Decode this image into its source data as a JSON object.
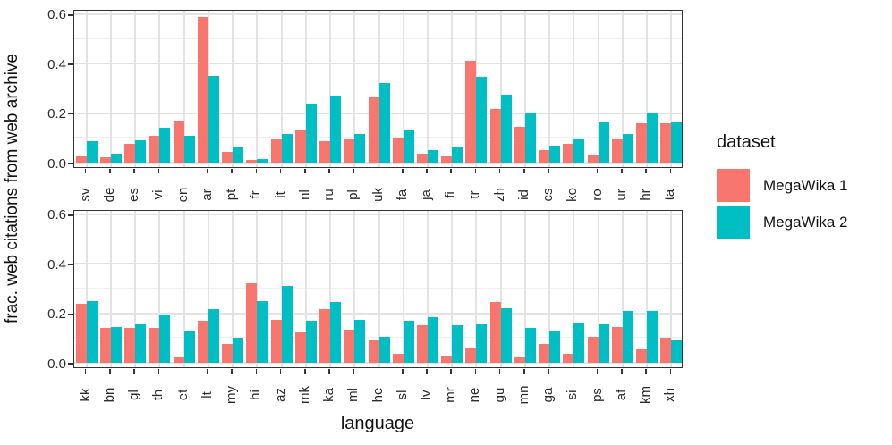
{
  "chart_data": {
    "type": "bar",
    "title": "",
    "xlabel": "language",
    "ylabel": "frac. web citations from web archive",
    "ylim": [
      0,
      0.6
    ],
    "yticks": [
      0.0,
      0.2,
      0.4,
      0.6
    ],
    "ytick_labels": [
      "0.0",
      "0.2",
      "0.4",
      "0.6"
    ],
    "yminor": [
      0.1,
      0.3,
      0.5
    ],
    "grid": "major+minor",
    "legend_position": "right",
    "panels": [
      {
        "categories": [
          "sv",
          "de",
          "es",
          "vi",
          "en",
          "ar",
          "pt",
          "fr",
          "it",
          "nl",
          "ru",
          "pl",
          "uk",
          "fa",
          "ja",
          "fi",
          "tr",
          "zh",
          "id",
          "cs",
          "ko",
          "ro",
          "ur",
          "hr",
          "ta"
        ],
        "series": [
          {
            "name": "MegaWika 1",
            "values": [
              0.025,
              0.02,
              0.075,
              0.11,
              0.17,
              0.59,
              0.045,
              0.01,
              0.095,
              0.135,
              0.085,
              0.095,
              0.265,
              0.1,
              0.035,
              0.025,
              0.41,
              0.215,
              0.145,
              0.05,
              0.075,
              0.03,
              0.095,
              0.16,
              0.16
            ]
          },
          {
            "name": "MegaWika 2",
            "values": [
              0.085,
              0.035,
              0.09,
              0.14,
              0.11,
              0.35,
              0.065,
              0.015,
              0.115,
              0.24,
              0.27,
              0.115,
              0.32,
              0.135,
              0.05,
              0.065,
              0.345,
              0.275,
              0.2,
              0.07,
              0.095,
              0.165,
              0.115,
              0.2,
              0.165
            ]
          }
        ]
      },
      {
        "categories": [
          "kk",
          "bn",
          "gl",
          "th",
          "et",
          "lt",
          "my",
          "hi",
          "az",
          "mk",
          "ka",
          "ml",
          "he",
          "sl",
          "lv",
          "mr",
          "ne",
          "gu",
          "mn",
          "ga",
          "si",
          "ps",
          "af",
          "km",
          "xh"
        ],
        "series": [
          {
            "name": "MegaWika 1",
            "values": [
              0.24,
              0.14,
              0.14,
              0.14,
              0.02,
              0.17,
              0.075,
              0.32,
              0.175,
              0.125,
              0.215,
              0.135,
              0.095,
              0.035,
              0.15,
              0.03,
              0.06,
              0.245,
              0.025,
              0.075,
              0.035,
              0.105,
              0.145,
              0.055,
              0.1
            ]
          },
          {
            "name": "MegaWika 2",
            "values": [
              0.25,
              0.145,
              0.155,
              0.19,
              0.13,
              0.215,
              0.1,
              0.25,
              0.31,
              0.17,
              0.245,
              0.175,
              0.105,
              0.17,
              0.185,
              0.15,
              0.155,
              0.22,
              0.14,
              0.13,
              0.16,
              0.155,
              0.21,
              0.21,
              0.095
            ]
          }
        ]
      }
    ]
  },
  "legend": {
    "title": "dataset",
    "entries": [
      {
        "label": "MegaWika 1",
        "color": "#F8766D"
      },
      {
        "label": "MegaWika 2",
        "color": "#00BFC4"
      }
    ]
  }
}
